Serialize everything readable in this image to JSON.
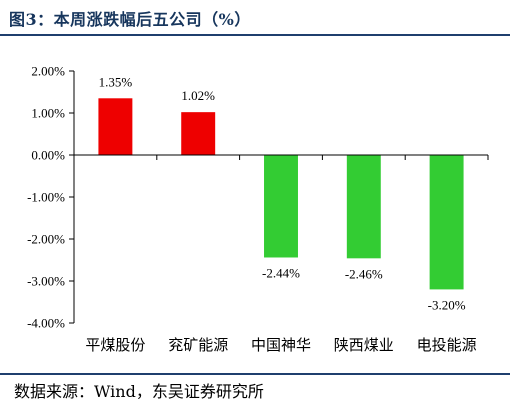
{
  "title": "图3：本周涨跌幅后五公司（%）",
  "source": "数据来源：Wind，东吴证券研究所",
  "chart_data": {
    "type": "bar",
    "categories": [
      "平煤股份",
      "兖矿能源",
      "中国神华",
      "陕西煤业",
      "电投能源"
    ],
    "values": [
      1.35,
      1.02,
      -2.44,
      -2.46,
      -3.2
    ],
    "data_labels": [
      "1.35%",
      "1.02%",
      "-2.44%",
      "-2.46%",
      "-3.20%"
    ],
    "ylim": [
      -4.0,
      2.0
    ],
    "yticks": [
      2.0,
      1.0,
      0.0,
      -1.0,
      -2.0,
      -3.0,
      -4.0
    ],
    "ytick_labels": [
      "2.00%",
      "1.00%",
      "0.00%",
      "-1.00%",
      "-2.00%",
      "-3.00%",
      "-4.00%"
    ],
    "colors": {
      "positive": "#EE0000",
      "negative": "#33CC33",
      "axis": "#000000"
    },
    "grid": false,
    "legend": "none"
  }
}
